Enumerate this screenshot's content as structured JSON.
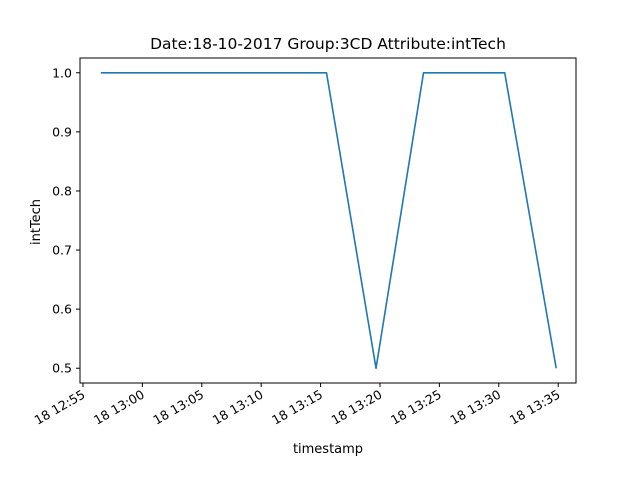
{
  "chart_data": {
    "type": "line",
    "title": "Date:18-10-2017  Group:3CD Attribute:intTech",
    "xlabel": "timestamp",
    "ylabel": "intTech",
    "x_ticks": [
      "18 12:55",
      "18 13:00",
      "18 13:05",
      "18 13:10",
      "18 13:15",
      "18 13:20",
      "18 13:25",
      "18 13:30",
      "18 13:35"
    ],
    "y_ticks": [
      "0.5",
      "0.6",
      "0.7",
      "0.8",
      "0.9",
      "1.0"
    ],
    "xlim": [
      "2017-10-18 12:54:45",
      "2017-10-18 13:36:30"
    ],
    "ylim": [
      0.475,
      1.025
    ],
    "grid": false,
    "series": [
      {
        "color": "#1f77b4",
        "x": [
          "2017-10-18 12:56:30",
          "2017-10-18 13:15:30",
          "2017-10-18 13:19:40",
          "2017-10-18 13:23:40",
          "2017-10-18 13:30:30",
          "2017-10-18 13:34:50"
        ],
        "y": [
          1.0,
          1.0,
          0.5,
          1.0,
          1.0,
          0.5
        ]
      }
    ]
  }
}
